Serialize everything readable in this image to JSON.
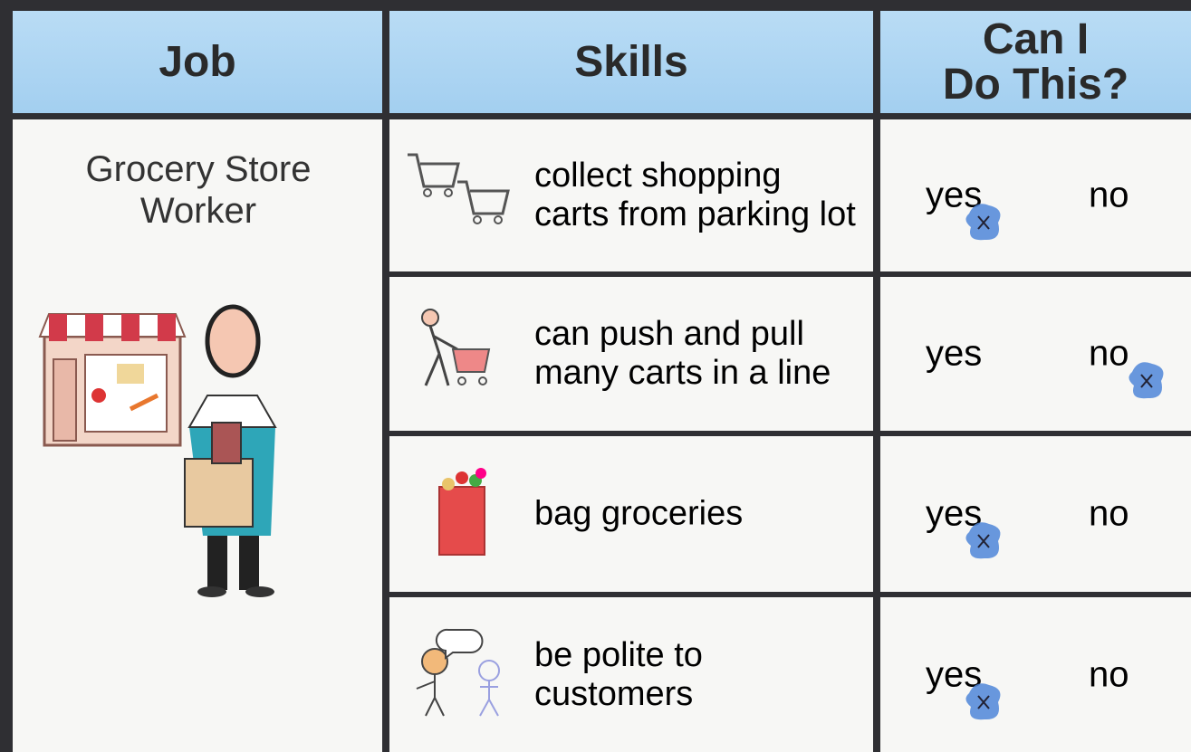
{
  "header": {
    "job": "Job",
    "skills": "Skills",
    "can_do": [
      "Can I",
      "Do This?"
    ]
  },
  "job": "Grocery Store Worker",
  "rows": [
    {
      "skill": "collect shopping carts from parking lot",
      "yes": "yes",
      "no": "no",
      "selected": "yes"
    },
    {
      "skill": "can push and pull many carts in a line",
      "yes": "yes",
      "no": "no",
      "selected": "no"
    },
    {
      "skill": "bag groceries",
      "yes": "yes",
      "no": "no",
      "selected": "yes"
    },
    {
      "skill": "be polite to customers",
      "yes": "yes",
      "no": "no",
      "selected": "yes"
    }
  ]
}
